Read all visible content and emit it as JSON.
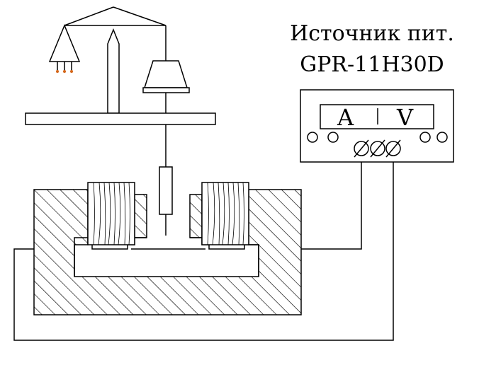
{
  "power_supply": {
    "name_line1": "Источник пит.",
    "name_line2": "GPR-11H30D",
    "meter_left": "A",
    "meter_right": "V"
  },
  "colors": {
    "stroke": "#000000",
    "background": "#ffffff",
    "terminal": "#d4661a"
  }
}
